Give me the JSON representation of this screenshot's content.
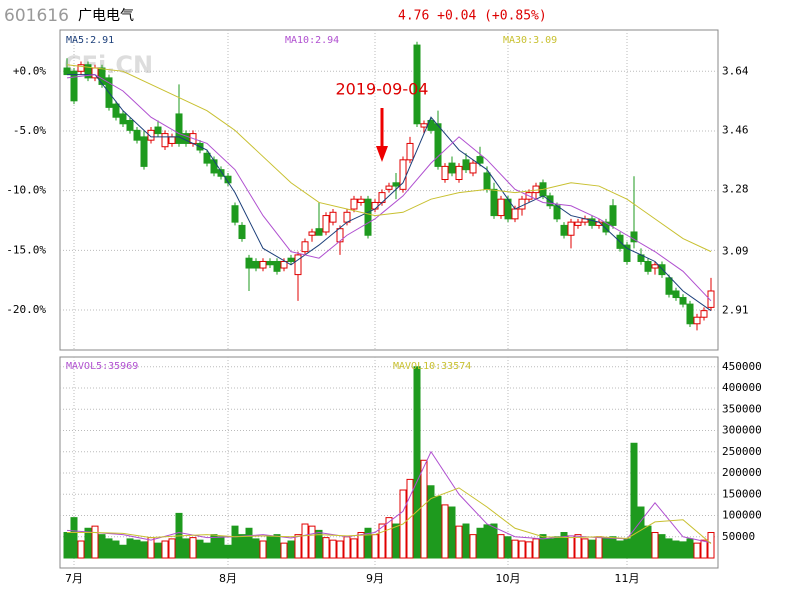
{
  "chart_data": {
    "type": "candlestick",
    "header": {
      "code": "601616",
      "name": "广电电气",
      "quote": "4.76 +0.04 (+0.85%)"
    },
    "watermark": "CFi.CN",
    "annotation": {
      "text": "2019-09-04",
      "index": 45
    },
    "up_color": "#e00000",
    "down_color": "#1e9a1e",
    "xticks": [
      {
        "value": 1,
        "label": "7月"
      },
      {
        "value": 23,
        "label": "8月"
      },
      {
        "value": 44,
        "label": "9月"
      },
      {
        "value": 63,
        "label": "10月"
      },
      {
        "value": 80,
        "label": "11月"
      }
    ],
    "ylim": [
      2.79,
      3.766
    ],
    "yticks": [
      3.64,
      3.46,
      3.28,
      3.09,
      2.91
    ],
    "y2lim": [
      -23.35,
      3.46
    ],
    "y2ticks": [
      {
        "value": 0,
        "label": "+0.0%"
      },
      {
        "value": -5,
        "label": "-5.0%"
      },
      {
        "value": -10,
        "label": "-10.0%"
      },
      {
        "value": -15,
        "label": "-15.0%"
      },
      {
        "value": -20,
        "label": "-20.0%"
      }
    ],
    "vlim": [
      -23500,
      473000
    ],
    "vticks": [
      50000,
      100000,
      150000,
      200000,
      250000,
      300000,
      350000,
      400000,
      450000
    ],
    "grid": true,
    "ohlc": [
      [
        3.65,
        3.68,
        3.63,
        3.63
      ],
      [
        3.64,
        3.65,
        3.54,
        3.55
      ],
      [
        3.64,
        3.67,
        3.63,
        3.66
      ],
      [
        3.66,
        3.67,
        3.61,
        3.62
      ],
      [
        3.62,
        3.66,
        3.61,
        3.65
      ],
      [
        3.65,
        3.66,
        3.59,
        3.6
      ],
      [
        3.62,
        3.63,
        3.52,
        3.53
      ],
      [
        3.54,
        3.55,
        3.49,
        3.5
      ],
      [
        3.51,
        3.52,
        3.47,
        3.48
      ],
      [
        3.49,
        3.5,
        3.45,
        3.46
      ],
      [
        3.46,
        3.47,
        3.42,
        3.43
      ],
      [
        3.44,
        3.46,
        3.34,
        3.35
      ],
      [
        3.43,
        3.47,
        3.42,
        3.46
      ],
      [
        3.47,
        3.49,
        3.44,
        3.45
      ],
      [
        3.41,
        3.46,
        3.4,
        3.45
      ],
      [
        3.42,
        3.45,
        3.41,
        3.44
      ],
      [
        3.51,
        3.6,
        3.41,
        3.42
      ],
      [
        3.45,
        3.46,
        3.41,
        3.42
      ],
      [
        3.42,
        3.46,
        3.41,
        3.45
      ],
      [
        3.42,
        3.43,
        3.39,
        3.4
      ],
      [
        3.39,
        3.4,
        3.35,
        3.36
      ],
      [
        3.37,
        3.38,
        3.32,
        3.33
      ],
      [
        3.34,
        3.35,
        3.31,
        3.32
      ],
      [
        3.32,
        3.33,
        3.29,
        3.3
      ],
      [
        3.23,
        3.24,
        3.17,
        3.18
      ],
      [
        3.17,
        3.18,
        3.12,
        3.13
      ],
      [
        3.07,
        3.08,
        2.97,
        3.04
      ],
      [
        3.06,
        3.07,
        3.03,
        3.04
      ],
      [
        3.04,
        3.07,
        3.03,
        3.06
      ],
      [
        3.06,
        3.07,
        3.04,
        3.05
      ],
      [
        3.06,
        3.07,
        3.02,
        3.03
      ],
      [
        3.04,
        3.07,
        3.03,
        3.06
      ],
      [
        3.07,
        3.08,
        3.05,
        3.06
      ],
      [
        3.02,
        3.09,
        2.94,
        3.08
      ],
      [
        3.09,
        3.13,
        3.08,
        3.12
      ],
      [
        3.14,
        3.16,
        3.12,
        3.15
      ],
      [
        3.16,
        3.24,
        3.14,
        3.14
      ],
      [
        3.15,
        3.21,
        3.14,
        3.2
      ],
      [
        3.18,
        3.22,
        3.17,
        3.21
      ],
      [
        3.12,
        3.17,
        3.08,
        3.16
      ],
      [
        3.18,
        3.22,
        3.17,
        3.21
      ],
      [
        3.22,
        3.26,
        3.21,
        3.25
      ],
      [
        3.24,
        3.26,
        3.23,
        3.25
      ],
      [
        3.25,
        3.26,
        3.13,
        3.14
      ],
      [
        3.22,
        3.25,
        3.21,
        3.24
      ],
      [
        3.24,
        3.28,
        3.23,
        3.27
      ],
      [
        3.28,
        3.3,
        3.27,
        3.29
      ],
      [
        3.3,
        3.33,
        3.25,
        3.29
      ],
      [
        3.28,
        3.38,
        3.27,
        3.37
      ],
      [
        3.37,
        3.44,
        3.36,
        3.42
      ],
      [
        3.72,
        3.73,
        3.47,
        3.48
      ],
      [
        3.47,
        3.49,
        3.45,
        3.48
      ],
      [
        3.49,
        3.5,
        3.45,
        3.46
      ],
      [
        3.48,
        3.52,
        3.34,
        3.35
      ],
      [
        3.31,
        3.36,
        3.3,
        3.35
      ],
      [
        3.36,
        3.38,
        3.32,
        3.33
      ],
      [
        3.31,
        3.36,
        3.3,
        3.35
      ],
      [
        3.37,
        3.39,
        3.33,
        3.34
      ],
      [
        3.33,
        3.37,
        3.32,
        3.36
      ],
      [
        3.38,
        3.41,
        3.35,
        3.36
      ],
      [
        3.33,
        3.35,
        3.27,
        3.28
      ],
      [
        3.28,
        3.3,
        3.19,
        3.2
      ],
      [
        3.2,
        3.26,
        3.19,
        3.25
      ],
      [
        3.25,
        3.26,
        3.18,
        3.19
      ],
      [
        3.19,
        3.23,
        3.18,
        3.22
      ],
      [
        3.22,
        3.26,
        3.2,
        3.25
      ],
      [
        3.25,
        3.28,
        3.24,
        3.27
      ],
      [
        3.27,
        3.3,
        3.25,
        3.29
      ],
      [
        3.3,
        3.31,
        3.25,
        3.26
      ],
      [
        3.26,
        3.27,
        3.22,
        3.23
      ],
      [
        3.23,
        3.24,
        3.18,
        3.19
      ],
      [
        3.17,
        3.18,
        3.13,
        3.14
      ],
      [
        3.14,
        3.19,
        3.1,
        3.18
      ],
      [
        3.17,
        3.19,
        3.16,
        3.18
      ],
      [
        3.18,
        3.2,
        3.17,
        3.19
      ],
      [
        3.19,
        3.2,
        3.16,
        3.17
      ],
      [
        3.17,
        3.19,
        3.16,
        3.18
      ],
      [
        3.18,
        3.19,
        3.14,
        3.15
      ],
      [
        3.23,
        3.25,
        3.16,
        3.17
      ],
      [
        3.14,
        3.15,
        3.09,
        3.1
      ],
      [
        3.11,
        3.12,
        3.05,
        3.06
      ],
      [
        3.15,
        3.32,
        3.1,
        3.12
      ],
      [
        3.08,
        3.1,
        3.05,
        3.06
      ],
      [
        3.06,
        3.07,
        3.02,
        3.03
      ],
      [
        3.04,
        3.06,
        3.02,
        3.05
      ],
      [
        3.05,
        3.06,
        3.01,
        3.02
      ],
      [
        3.01,
        3.02,
        2.95,
        2.96
      ],
      [
        2.97,
        2.98,
        2.94,
        2.95
      ],
      [
        2.95,
        2.96,
        2.92,
        2.93
      ],
      [
        2.93,
        2.94,
        2.86,
        2.87
      ],
      [
        2.87,
        2.9,
        2.85,
        2.89
      ],
      [
        2.89,
        2.92,
        2.88,
        2.91
      ],
      [
        2.92,
        3.01,
        2.91,
        2.97
      ]
    ],
    "volume": [
      60000,
      95000,
      40000,
      70000,
      75000,
      55000,
      45000,
      40000,
      30000,
      45000,
      42000,
      38000,
      48000,
      35000,
      40000,
      45000,
      105000,
      45000,
      48000,
      42000,
      35000,
      55000,
      50000,
      30000,
      75000,
      55000,
      70000,
      45000,
      40000,
      50000,
      55000,
      35000,
      40000,
      55000,
      80000,
      75000,
      65000,
      48000,
      42000,
      40000,
      50000,
      45000,
      60000,
      70000,
      55000,
      80000,
      95000,
      80000,
      160000,
      185000,
      450000,
      230000,
      170000,
      145000,
      125000,
      120000,
      75000,
      80000,
      55000,
      70000,
      78000,
      80000,
      55000,
      50000,
      42000,
      40000,
      38000,
      45000,
      55000,
      45000,
      50000,
      60000,
      52000,
      55000,
      45000,
      42000,
      50000,
      48000,
      50000,
      40000,
      45000,
      270000,
      120000,
      75000,
      60000,
      55000,
      45000,
      40000,
      38000,
      45000,
      35000,
      42000,
      60000
    ],
    "ma_x": [
      0,
      4,
      8,
      12,
      16,
      20,
      24,
      28,
      32,
      36,
      40,
      44,
      48,
      52,
      56,
      60,
      64,
      68,
      72,
      76,
      80,
      84,
      88,
      92
    ],
    "series": [
      {
        "name": "MA5",
        "label": "MA5:2.91",
        "color": "#1c3f7a",
        "axis": "y",
        "values": [
          3.63,
          3.63,
          3.52,
          3.44,
          3.44,
          3.4,
          3.27,
          3.1,
          3.05,
          3.11,
          3.18,
          3.22,
          3.3,
          3.5,
          3.4,
          3.34,
          3.22,
          3.26,
          3.2,
          3.18,
          3.1,
          3.06,
          2.97,
          2.91
        ]
      },
      {
        "name": "MA10",
        "label": "MA10:2.94",
        "color": "#b050d0",
        "axis": "y",
        "values": [
          3.62,
          3.63,
          3.58,
          3.5,
          3.45,
          3.42,
          3.34,
          3.2,
          3.09,
          3.07,
          3.14,
          3.19,
          3.26,
          3.36,
          3.44,
          3.37,
          3.28,
          3.24,
          3.23,
          3.19,
          3.14,
          3.09,
          3.03,
          2.94
        ]
      },
      {
        "name": "MA30",
        "label": "MA30:3.09",
        "color": "#c8c030",
        "axis": "y",
        "values": [
          3.66,
          3.65,
          3.64,
          3.6,
          3.56,
          3.52,
          3.46,
          3.38,
          3.3,
          3.24,
          3.22,
          3.2,
          3.21,
          3.25,
          3.27,
          3.28,
          3.27,
          3.28,
          3.3,
          3.29,
          3.25,
          3.19,
          3.13,
          3.09
        ]
      },
      {
        "name": "MAVOL5",
        "label": "MAVOL5:35969",
        "color": "#b050d0",
        "axis": "volume",
        "values": [
          65000,
          60000,
          55000,
          42000,
          60000,
          48000,
          50000,
          55000,
          47000,
          60000,
          50000,
          60000,
          110000,
          250000,
          150000,
          80000,
          50000,
          45000,
          52000,
          48000,
          45000,
          130000,
          50000,
          36000
        ]
      },
      {
        "name": "MAVOL10",
        "label": "MAVOL10:33574",
        "color": "#c8c030",
        "axis": "volume",
        "values": [
          60000,
          60000,
          58000,
          48000,
          52000,
          55000,
          50000,
          52000,
          50000,
          55000,
          52000,
          55000,
          80000,
          140000,
          165000,
          120000,
          70000,
          50000,
          48000,
          50000,
          46000,
          85000,
          90000,
          34000
        ]
      }
    ]
  }
}
